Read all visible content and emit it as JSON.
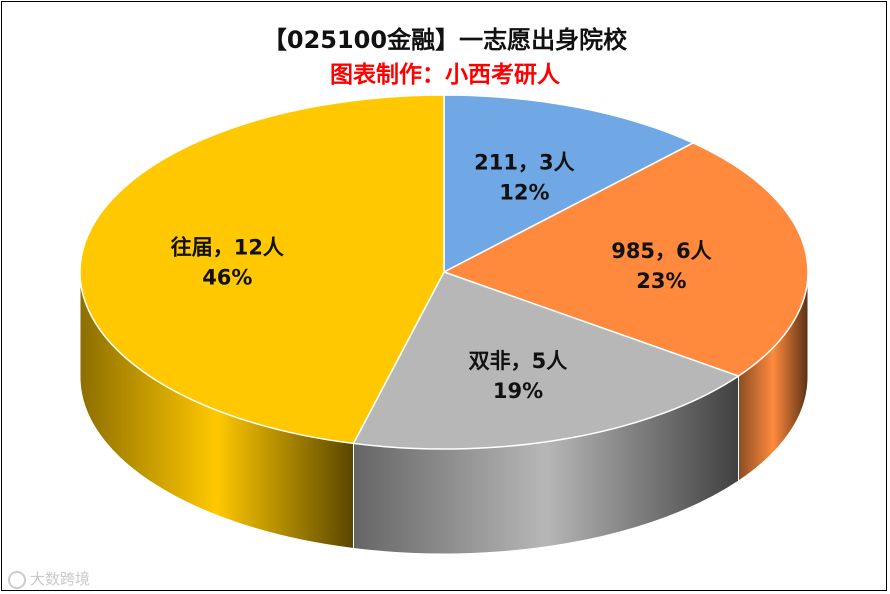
{
  "chart_data": {
    "type": "pie",
    "title": "【025100金融】一志愿出身院校",
    "subtitle": "图表制作：小西考研人",
    "slices": [
      {
        "label": "211，3人",
        "count": 3,
        "percent": "12%",
        "value": 12,
        "color": "#6FA8E4"
      },
      {
        "label": "985，6人",
        "count": 6,
        "percent": "23%",
        "value": 23,
        "color": "#FF8A3D"
      },
      {
        "label": "双非，5人",
        "count": 5,
        "percent": "19%",
        "value": 19,
        "color": "#B7B7B7"
      },
      {
        "label": "往届，12人",
        "count": 12,
        "percent": "46%",
        "value": 46,
        "color": "#FFC800"
      }
    ],
    "style": "3d",
    "legend": "none"
  },
  "watermark": "大数跨境"
}
